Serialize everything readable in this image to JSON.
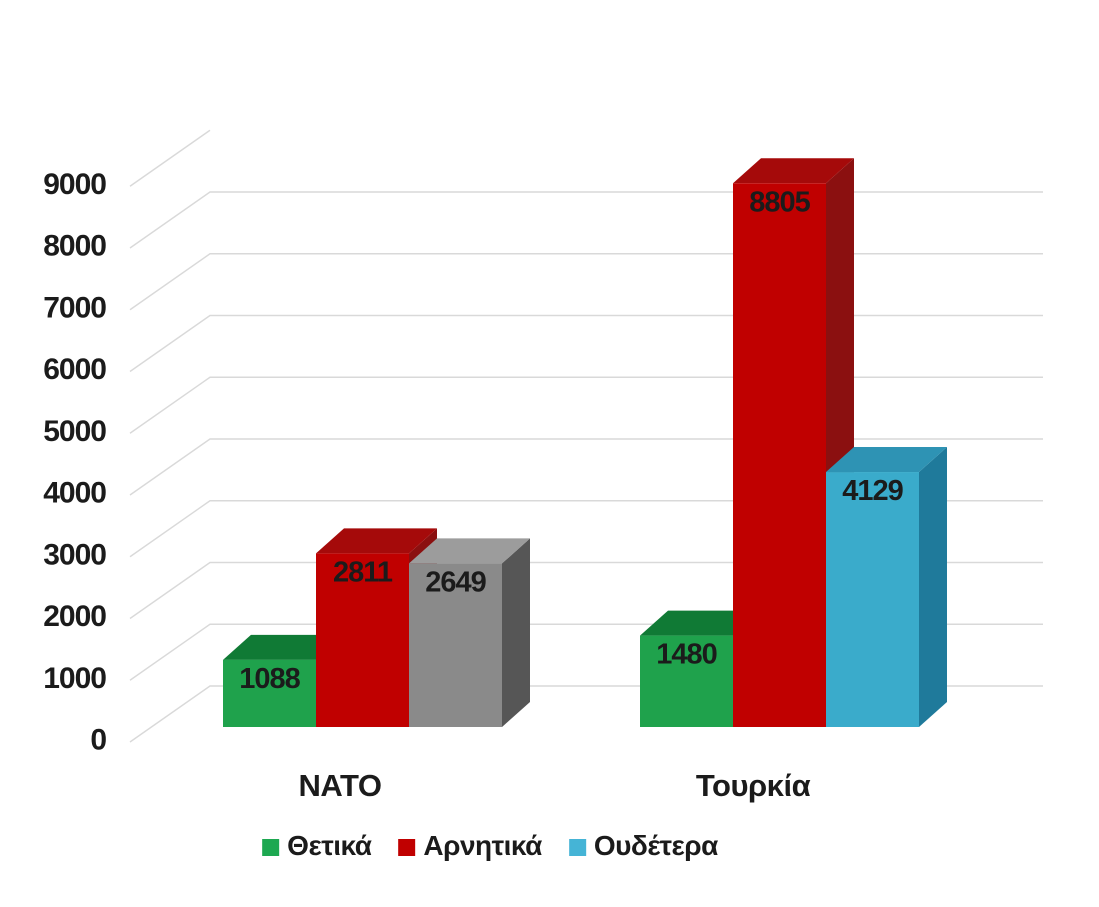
{
  "chart_data": {
    "type": "bar",
    "style": "3d-clustered-column",
    "title": "",
    "categories": [
      "NATO",
      "Τουρκία"
    ],
    "series": [
      {
        "name": "Θετικά",
        "values": [
          1088,
          1480
        ],
        "legend_color": "#1da851"
      },
      {
        "name": "Αρνητικά",
        "values": [
          2811,
          8805
        ],
        "legend_color": "#c00000"
      },
      {
        "name": "Ουδέτερα",
        "values": [
          2649,
          4129
        ],
        "legend_color": "#45b4d6"
      }
    ],
    "data_labels": [
      [
        "1088",
        "2811",
        "2649"
      ],
      [
        "1480",
        "8805",
        "4129"
      ]
    ],
    "bar_face_colors": [
      [
        {
          "front": "#1fa24c",
          "top": "#107a35",
          "side": "#0c6129"
        },
        {
          "front": "#c00000",
          "top": "#a50a0a",
          "side": "#8b1010"
        },
        {
          "front": "#8a8a8a",
          "top": "#9c9c9c",
          "side": "#565656"
        }
      ],
      [
        {
          "front": "#1fa24c",
          "top": "#107a35",
          "side": "#0c6129"
        },
        {
          "front": "#c00000",
          "top": "#a50a0a",
          "side": "#8b1010"
        },
        {
          "front": "#3aabcb",
          "top": "#2e93b4",
          "side": "#1f7a9b"
        }
      ]
    ],
    "y_axis": {
      "min": 0,
      "max": 9000,
      "tick_interval": 1000,
      "tick_labels": [
        "0",
        "1000",
        "2000",
        "3000",
        "4000",
        "5000",
        "6000",
        "7000",
        "8000",
        "9000"
      ]
    },
    "grid": true,
    "gridline_color": "#d9d9d9",
    "text_color": "#1b1b1b",
    "background_color": "#ffffff",
    "legend_position": "bottom"
  }
}
